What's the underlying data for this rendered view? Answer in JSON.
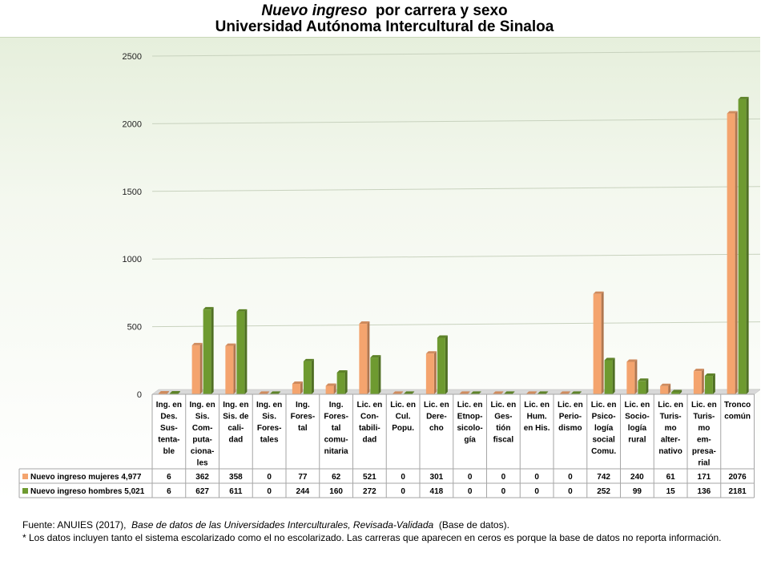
{
  "title": {
    "italic_part": "Nuevo ingreso",
    "rest": "por carrera y sexo",
    "line2": "Universidad Autónoma Intercultural de Sinaloa"
  },
  "chart_data": {
    "type": "bar",
    "categories": [
      [
        "Ing. en",
        "Des.",
        "Sus-",
        "tenta-",
        "ble"
      ],
      [
        "Ing. en",
        "Sis.",
        "Com-",
        "puta-",
        "ciona-",
        "les"
      ],
      [
        "Ing. en",
        "Sis. de",
        "cali-",
        "dad"
      ],
      [
        "Ing. en",
        "Sis.",
        "Fores-",
        "tales"
      ],
      [
        "Ing.",
        "Fores-",
        "tal"
      ],
      [
        "Ing.",
        "Fores-",
        "tal",
        "comu-",
        "nitaria"
      ],
      [
        "Lic. en",
        "Con-",
        "tabili-",
        "dad"
      ],
      [
        "Lic. en",
        "Cul.",
        "Popu."
      ],
      [
        "Lic. en",
        "Dere-",
        "cho"
      ],
      [
        "Lic. en",
        "Etnop-",
        "sicolo-",
        "gía"
      ],
      [
        "Lic. en",
        "Ges-",
        "tión",
        "fiscal"
      ],
      [
        "Lic. en",
        "Hum.",
        "en His."
      ],
      [
        "Lic. en",
        "Perio-",
        "dismo"
      ],
      [
        "Lic. en",
        "Psico-",
        "logía",
        "social",
        "Comu."
      ],
      [
        "Lic. en",
        "Socio-",
        "logía",
        "rural"
      ],
      [
        "Lic. en",
        "Turis-",
        "mo",
        "alter-",
        "nativo"
      ],
      [
        "Lic. en",
        "Turis-",
        "mo",
        "em-",
        "presa-",
        "rial"
      ],
      [
        "Tronco",
        "común"
      ]
    ],
    "series": [
      {
        "name": "Nuevo ingreso mujeres 4,977",
        "color": "#f4a46e",
        "values": [
          6,
          362,
          358,
          0,
          77,
          62,
          521,
          0,
          301,
          0,
          0,
          0,
          0,
          742,
          240,
          61,
          171,
          2076
        ]
      },
      {
        "name": "Nuevo ingreso hombres 5,021",
        "color": "#6e9a30",
        "values": [
          6,
          627,
          611,
          0,
          244,
          160,
          272,
          0,
          418,
          0,
          0,
          0,
          0,
          252,
          99,
          15,
          136,
          2181
        ]
      }
    ],
    "ylim": [
      0,
      2500
    ],
    "yticks": [
      0,
      500,
      1000,
      1500,
      2000,
      2500
    ],
    "grid": true,
    "legend": "data-table-below"
  },
  "footer": {
    "source_prefix": "Fuente: ANUIES (2017),",
    "source_title": "Base de datos de las Universidades Interculturales, Revisada-Validada",
    "source_suffix": "(Base de datos).",
    "note": "* Los datos incluyen tanto el sistema escolarizado como el no escolarizado. Las carreras que aparecen en ceros es porque la base de datos no reporta información."
  }
}
